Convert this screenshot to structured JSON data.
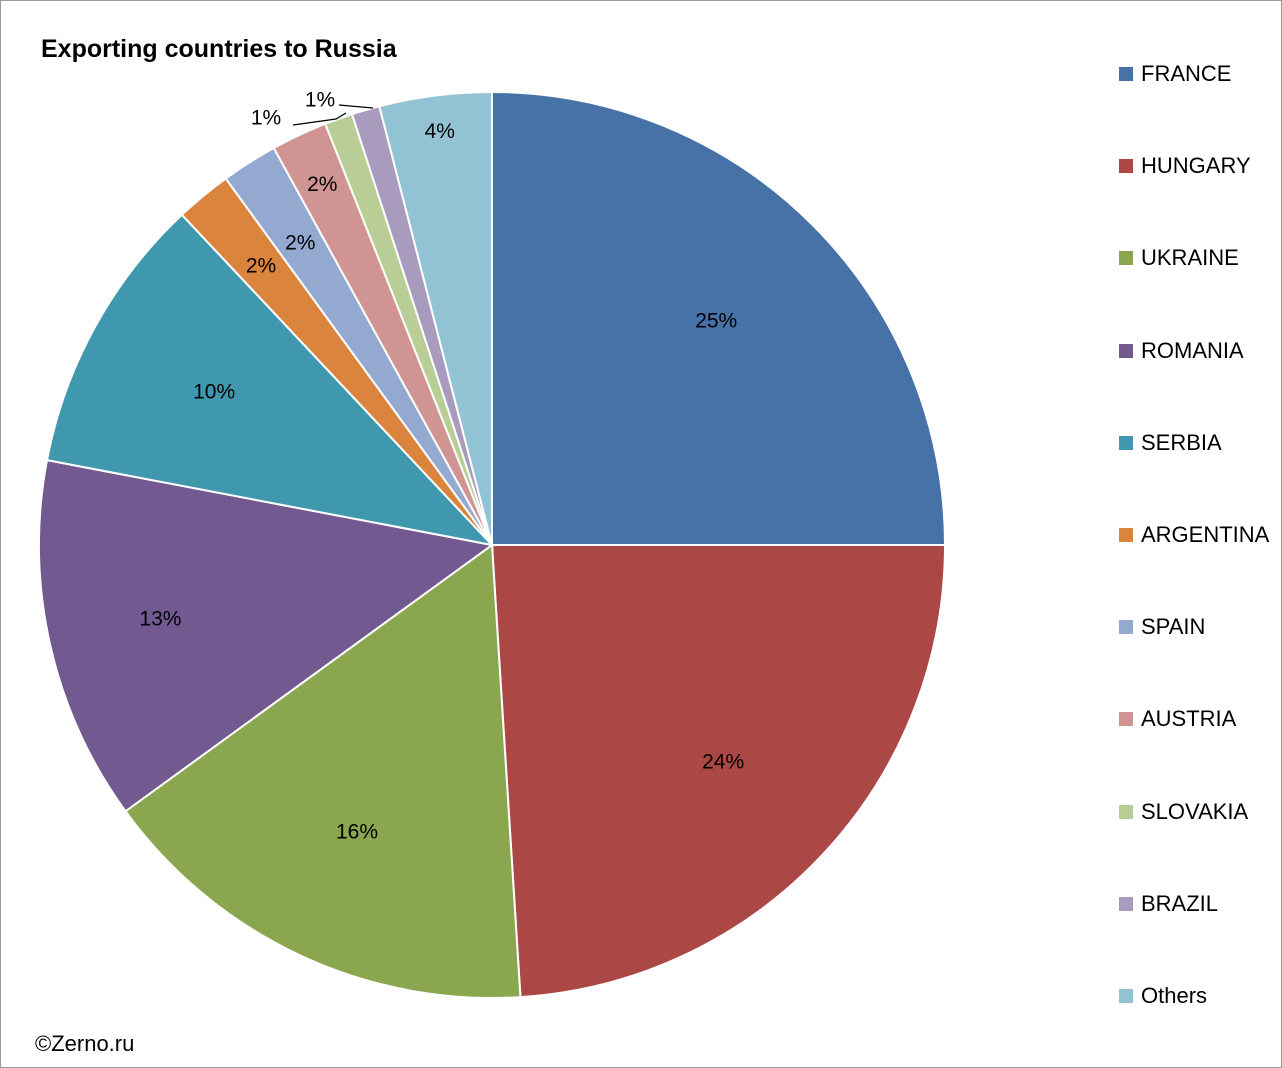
{
  "chart_data": {
    "type": "pie",
    "title": "Exporting countries to Russia",
    "credit": "©Zerno.ru",
    "legend_position": "right",
    "categories": [
      "FRANCE",
      "HUNGARY",
      "UKRAINE",
      "ROMANIA",
      "SERBIA",
      "ARGENTINA",
      "SPAIN",
      "AUSTRIA",
      "SLOVAKIA",
      "BRAZIL",
      "Others"
    ],
    "values": [
      25,
      24,
      16,
      13,
      10,
      2,
      2,
      2,
      1,
      1,
      4
    ],
    "labels": [
      "25%",
      "24%",
      "16%",
      "13%",
      "10%",
      "2%",
      "2%",
      "2%",
      "1%",
      "1%",
      "4%"
    ],
    "colors": [
      "#4672A8",
      "#AB4745",
      "#8AA64F",
      "#725990",
      "#4098AF",
      "#DB843D",
      "#93A9D0",
      "#D09493",
      "#B9CD96",
      "#A99BBD",
      "#92C3D5"
    ]
  }
}
